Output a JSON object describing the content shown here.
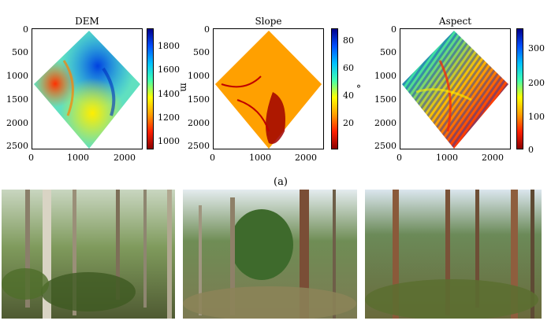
{
  "figure_label": "(a)",
  "panels": [
    {
      "title": "DEM",
      "y_ticks": [
        "0",
        "500",
        "1000",
        "1500",
        "2000",
        "2500"
      ],
      "x_ticks": [
        "0",
        "1000",
        "2000"
      ],
      "colorbar_ticks": [
        "1800",
        "1600",
        "1400",
        "1200",
        "1000"
      ],
      "colorbar_label": "m",
      "colormap": [
        "#00008b",
        "#0050ff",
        "#00c0ff",
        "#40ffb0",
        "#ffff00",
        "#ffa000",
        "#ff2000",
        "#8b0000"
      ]
    },
    {
      "title": "Slope",
      "y_ticks": [
        "0",
        "500",
        "1000",
        "1500",
        "2000",
        "2500"
      ],
      "x_ticks": [
        "0",
        "1000",
        "2000"
      ],
      "colorbar_ticks": [
        "80",
        "60",
        "40",
        "20"
      ],
      "colorbar_label": "°",
      "colormap": [
        "#00008b",
        "#0050ff",
        "#00c0ff",
        "#40ffb0",
        "#ffff00",
        "#ffa000",
        "#ff2000",
        "#8b0000"
      ]
    },
    {
      "title": "Aspect",
      "y_ticks": [
        "0",
        "500",
        "1000",
        "1500",
        "2000",
        "2500"
      ],
      "x_ticks": [
        "0",
        "1000",
        "2000"
      ],
      "colorbar_ticks": [
        "300",
        "200",
        "100",
        "0"
      ],
      "colorbar_label": "",
      "colormap": [
        "#00008b",
        "#0050ff",
        "#00c0ff",
        "#40ffb0",
        "#ffff00",
        "#ffa000",
        "#ff2000",
        "#8b0000"
      ]
    }
  ],
  "photos": [
    {
      "name": "forest-photo-1"
    },
    {
      "name": "forest-photo-2"
    },
    {
      "name": "forest-photo-3"
    }
  ]
}
